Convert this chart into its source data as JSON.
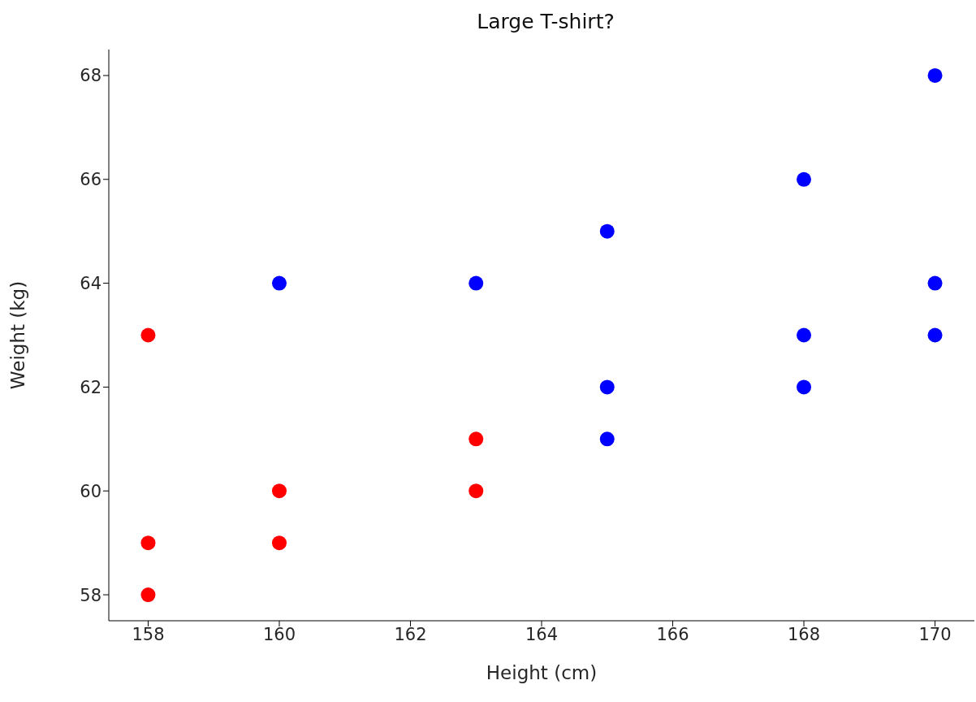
{
  "chart_data": {
    "type": "scatter",
    "title": "Large T-shirt?",
    "xlabel": "Height (cm)",
    "ylabel": "Weight (kg)",
    "xlim": [
      157.4,
      170.6
    ],
    "ylim": [
      57.5,
      68.5
    ],
    "xticks": [
      158,
      160,
      162,
      164,
      166,
      168,
      170
    ],
    "yticks": [
      58,
      60,
      62,
      64,
      66,
      68
    ],
    "grid": false,
    "legend": false,
    "marker": "circle",
    "series": [
      {
        "color": "#ff0000",
        "x": [
          158,
          158,
          158,
          160,
          160,
          163,
          163
        ],
        "values": [
          63,
          59,
          58,
          60,
          59,
          61,
          60
        ]
      },
      {
        "color": "#0000ff",
        "x": [
          160,
          163,
          165,
          165,
          165,
          168,
          168,
          168,
          170,
          170,
          170
        ],
        "values": [
          64,
          64,
          65,
          62,
          61,
          66,
          63,
          62,
          68,
          64,
          63
        ]
      }
    ]
  }
}
